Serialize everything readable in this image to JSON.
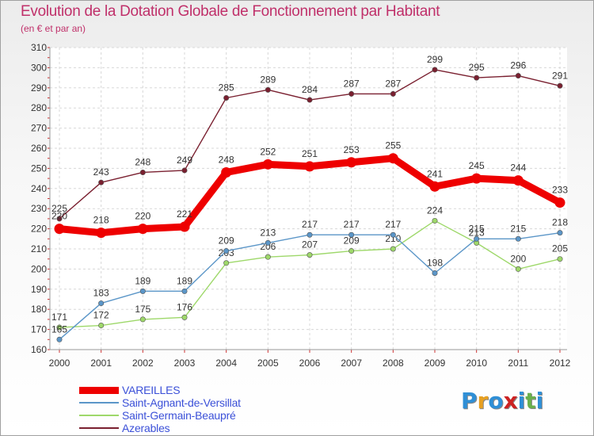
{
  "chart_data": {
    "type": "line",
    "title": "Evolution de la Dotation Globale de Fonctionnement par Habitant",
    "subtitle": "(en € et par an)",
    "x": [
      2000,
      2001,
      2002,
      2003,
      2004,
      2005,
      2006,
      2007,
      2008,
      2009,
      2010,
      2011,
      2012
    ],
    "ylim": [
      160,
      310
    ],
    "yticks": [
      160,
      170,
      180,
      190,
      200,
      210,
      220,
      230,
      240,
      250,
      260,
      270,
      280,
      290,
      300,
      310
    ],
    "grid": true,
    "legend_position": "bottom-left",
    "series": [
      {
        "name": "VAREILLES",
        "color": "#ee0000",
        "values": [
          220,
          218,
          220,
          221,
          248,
          252,
          251,
          253,
          255,
          241,
          245,
          244,
          233
        ]
      },
      {
        "name": "Saint-Agnant-de-Versillat",
        "color": "#5b96c8",
        "values": [
          165,
          183,
          189,
          189,
          209,
          213,
          217,
          217,
          217,
          198,
          215,
          215,
          218
        ]
      },
      {
        "name": "Saint-Germain-Beaupré",
        "color": "#9ed86a",
        "values": [
          171,
          172,
          175,
          176,
          203,
          206,
          207,
          209,
          210,
          224,
          213,
          200,
          205
        ]
      },
      {
        "name": "Azerables",
        "color": "#7a2030",
        "values": [
          225,
          243,
          248,
          249,
          285,
          289,
          284,
          287,
          287,
          299,
          295,
          296,
          291
        ]
      }
    ]
  },
  "logo": {
    "letters": [
      "P",
      "r",
      "o",
      "x",
      "i",
      "t",
      "i"
    ],
    "colors": [
      "#2f8fd6",
      "#e8a020",
      "#2f8fd6",
      "#cc2222",
      "#2f8fd6",
      "#6ab04c",
      "#2f8fd6"
    ]
  }
}
